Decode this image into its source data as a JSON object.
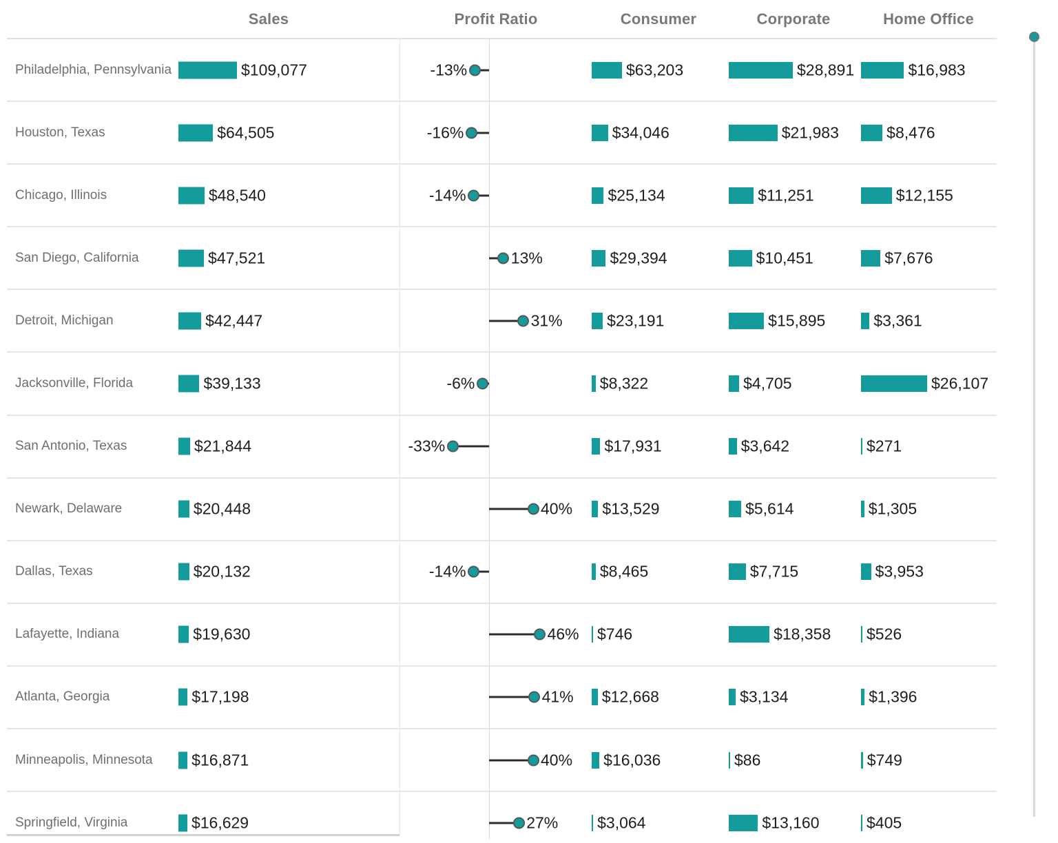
{
  "colors": {
    "accent_teal": "#149b9b",
    "dot_stroke": "#54595c",
    "stick_line": "#2b2d2e",
    "grid_line": "#e2e2e2",
    "axis_line": "#d8d8d8",
    "header_text": "#787878",
    "city_text": "#6f6f6f",
    "value_text": "#1e1e1e",
    "scrollbar_track": "#d9d9d9"
  },
  "chart_data": {
    "type": "table",
    "title": "",
    "description": "City-level bar table: Sales bars with labels, zero-centered Profit Ratio lollipops, and per-segment sales bars (Consumer, Corporate, Home Office)",
    "legend_position": "none",
    "grid": "horizontal-row-separators",
    "columns": [
      {
        "key": "city",
        "label": ""
      },
      {
        "key": "sales",
        "label": "Sales"
      },
      {
        "key": "profit_ratio",
        "label": "Profit Ratio"
      },
      {
        "key": "consumer",
        "label": "Consumer"
      },
      {
        "key": "corporate",
        "label": "Corporate"
      },
      {
        "key": "home_office",
        "label": "Home Office"
      }
    ],
    "axis": {
      "sales_max": 109077,
      "consumer_max": 63203,
      "corporate_max": 28891,
      "home_office_max": 26107,
      "profit_ratio_axis": "zero-centered, negative left / positive right"
    },
    "rows": [
      {
        "city": "Philadelphia, Pennsylvania",
        "sales": {
          "v": 109077,
          "t": "$109,077"
        },
        "profit": {
          "v": -13,
          "t": "-13%"
        },
        "consumer": {
          "v": 63203,
          "t": "$63,203"
        },
        "corporate": {
          "v": 28891,
          "t": "$28,891"
        },
        "home_office": {
          "v": 16983,
          "t": "$16,983"
        }
      },
      {
        "city": "Houston, Texas",
        "sales": {
          "v": 64505,
          "t": "$64,505"
        },
        "profit": {
          "v": -16,
          "t": "-16%"
        },
        "consumer": {
          "v": 34046,
          "t": "$34,046"
        },
        "corporate": {
          "v": 21983,
          "t": "$21,983"
        },
        "home_office": {
          "v": 8476,
          "t": "$8,476"
        }
      },
      {
        "city": "Chicago, Illinois",
        "sales": {
          "v": 48540,
          "t": "$48,540"
        },
        "profit": {
          "v": -14,
          "t": "-14%"
        },
        "consumer": {
          "v": 25134,
          "t": "$25,134"
        },
        "corporate": {
          "v": 11251,
          "t": "$11,251"
        },
        "home_office": {
          "v": 12155,
          "t": "$12,155"
        }
      },
      {
        "city": "San Diego, California",
        "sales": {
          "v": 47521,
          "t": "$47,521"
        },
        "profit": {
          "v": 13,
          "t": "13%"
        },
        "consumer": {
          "v": 29394,
          "t": "$29,394"
        },
        "corporate": {
          "v": 10451,
          "t": "$10,451"
        },
        "home_office": {
          "v": 7676,
          "t": "$7,676"
        }
      },
      {
        "city": "Detroit, Michigan",
        "sales": {
          "v": 42447,
          "t": "$42,447"
        },
        "profit": {
          "v": 31,
          "t": "31%"
        },
        "consumer": {
          "v": 23191,
          "t": "$23,191"
        },
        "corporate": {
          "v": 15895,
          "t": "$15,895"
        },
        "home_office": {
          "v": 3361,
          "t": "$3,361"
        }
      },
      {
        "city": "Jacksonville, Florida",
        "sales": {
          "v": 39133,
          "t": "$39,133"
        },
        "profit": {
          "v": -6,
          "t": "-6%"
        },
        "consumer": {
          "v": 8322,
          "t": "$8,322"
        },
        "corporate": {
          "v": 4705,
          "t": "$4,705"
        },
        "home_office": {
          "v": 26107,
          "t": "$26,107"
        }
      },
      {
        "city": "San Antonio, Texas",
        "sales": {
          "v": 21844,
          "t": "$21,844"
        },
        "profit": {
          "v": -33,
          "t": "-33%"
        },
        "consumer": {
          "v": 17931,
          "t": "$17,931"
        },
        "corporate": {
          "v": 3642,
          "t": "$3,642"
        },
        "home_office": {
          "v": 271,
          "t": "$271"
        }
      },
      {
        "city": "Newark, Delaware",
        "sales": {
          "v": 20448,
          "t": "$20,448"
        },
        "profit": {
          "v": 40,
          "t": "40%"
        },
        "consumer": {
          "v": 13529,
          "t": "$13,529"
        },
        "corporate": {
          "v": 5614,
          "t": "$5,614"
        },
        "home_office": {
          "v": 1305,
          "t": "$1,305"
        }
      },
      {
        "city": "Dallas, Texas",
        "sales": {
          "v": 20132,
          "t": "$20,132"
        },
        "profit": {
          "v": -14,
          "t": "-14%"
        },
        "consumer": {
          "v": 8465,
          "t": "$8,465"
        },
        "corporate": {
          "v": 7715,
          "t": "$7,715"
        },
        "home_office": {
          "v": 3953,
          "t": "$3,953"
        }
      },
      {
        "city": "Lafayette, Indiana",
        "sales": {
          "v": 19630,
          "t": "$19,630"
        },
        "profit": {
          "v": 46,
          "t": "46%"
        },
        "consumer": {
          "v": 746,
          "t": "$746"
        },
        "corporate": {
          "v": 18358,
          "t": "$18,358"
        },
        "home_office": {
          "v": 526,
          "t": "$526"
        }
      },
      {
        "city": "Atlanta, Georgia",
        "sales": {
          "v": 17198,
          "t": "$17,198"
        },
        "profit": {
          "v": 41,
          "t": "41%"
        },
        "consumer": {
          "v": 12668,
          "t": "$12,668"
        },
        "corporate": {
          "v": 3134,
          "t": "$3,134"
        },
        "home_office": {
          "v": 1396,
          "t": "$1,396"
        }
      },
      {
        "city": "Minneapolis, Minnesota",
        "sales": {
          "v": 16871,
          "t": "$16,871"
        },
        "profit": {
          "v": 40,
          "t": "40%"
        },
        "consumer": {
          "v": 16036,
          "t": "$16,036"
        },
        "corporate": {
          "v": 86,
          "t": "$86"
        },
        "home_office": {
          "v": 749,
          "t": "$749"
        }
      },
      {
        "city": "Springfield, Virginia",
        "sales": {
          "v": 16629,
          "t": "$16,629"
        },
        "profit": {
          "v": 27,
          "t": "27%"
        },
        "consumer": {
          "v": 3064,
          "t": "$3,064"
        },
        "corporate": {
          "v": 13160,
          "t": "$13,160"
        },
        "home_office": {
          "v": 405,
          "t": "$405"
        }
      }
    ]
  }
}
